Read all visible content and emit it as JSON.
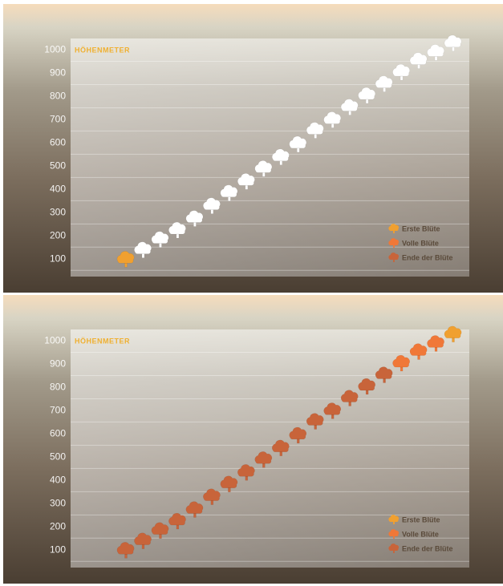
{
  "chart_data": [
    {
      "type": "scatter",
      "title": "HÖHENMETER",
      "categories": [
        null,
        null,
        null,
        null,
        null,
        null,
        null,
        null,
        null,
        null,
        null,
        null,
        null,
        null,
        null,
        null,
        null,
        null,
        null,
        null
      ],
      "series": [
        {
          "name": "Erste Blüte",
          "color": "#f0a030",
          "values": [
            100,
            null,
            null,
            null,
            null,
            null,
            null,
            null,
            null,
            null,
            null,
            null,
            null,
            null,
            null,
            null,
            null,
            null,
            null,
            null
          ]
        },
        {
          "name": "Volle Blüte",
          "color": "#f07838",
          "values": [
            null,
            null,
            null,
            null,
            null,
            null,
            null,
            null,
            null,
            null,
            null,
            null,
            null,
            null,
            null,
            null,
            null,
            null,
            null,
            null
          ]
        },
        {
          "name": "Ende der Blüte",
          "color": "#c8643a",
          "values": [
            null,
            null,
            null,
            null,
            null,
            null,
            null,
            null,
            null,
            null,
            null,
            null,
            null,
            null,
            null,
            null,
            null,
            null,
            null,
            null
          ]
        },
        {
          "color": "#ffffff",
          "values": [
            null,
            140,
            185,
            225,
            275,
            330,
            385,
            435,
            490,
            540,
            595,
            655,
            700,
            755,
            805,
            855,
            905,
            955,
            990,
            1030
          ]
        }
      ],
      "ylim": [
        25,
        1050
      ],
      "yticks": [
        100,
        200,
        300,
        400,
        500,
        600,
        700,
        800,
        900,
        1000
      ],
      "grid": true
    },
    {
      "type": "scatter",
      "title": "HÖHENMETER",
      "categories": [
        null,
        null,
        null,
        null,
        null,
        null,
        null,
        null,
        null,
        null,
        null,
        null,
        null,
        null,
        null,
        null,
        null,
        null,
        null,
        null
      ],
      "series": [
        {
          "name": "Erste Blüte",
          "color": "#f0a030",
          "values": [
            null,
            null,
            null,
            null,
            null,
            null,
            null,
            null,
            null,
            null,
            null,
            null,
            null,
            null,
            null,
            null,
            null,
            null,
            null,
            1030
          ]
        },
        {
          "name": "Volle Blüte",
          "color": "#f07838",
          "values": [
            null,
            null,
            null,
            null,
            null,
            null,
            null,
            null,
            null,
            null,
            null,
            null,
            null,
            null,
            null,
            null,
            905,
            955,
            990,
            null
          ]
        },
        {
          "name": "Ende der Blüte",
          "color": "#c8643a",
          "values": [
            100,
            140,
            185,
            225,
            275,
            330,
            385,
            435,
            490,
            540,
            595,
            655,
            700,
            755,
            805,
            855,
            null,
            null,
            null,
            null
          ]
        }
      ],
      "ylim": [
        25,
        1050
      ],
      "yticks": [
        100,
        200,
        300,
        400,
        500,
        600,
        700,
        800,
        900,
        1000
      ],
      "grid": true
    }
  ]
}
